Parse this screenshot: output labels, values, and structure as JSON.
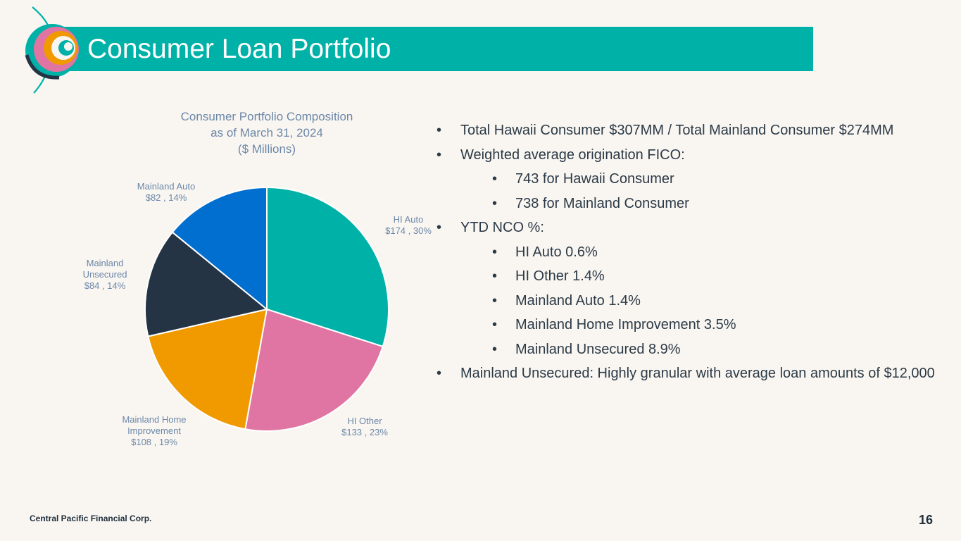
{
  "slide": {
    "title": "Consumer Loan Portfolio",
    "footer": "Central Pacific Financial Corp.",
    "page_number": "16"
  },
  "colors": {
    "title_bar": "#00b1a7",
    "background": "#f9f6f2",
    "label_text": "#6b87a6",
    "body_text": "#2c3a46"
  },
  "bullets": [
    {
      "level": 1,
      "text": "Total Hawaii Consumer $307MM / Total Mainland Consumer $274MM"
    },
    {
      "level": 1,
      "text": "Weighted average origination FICO:"
    },
    {
      "level": 2,
      "text": "743 for Hawaii Consumer"
    },
    {
      "level": 2,
      "text": "738 for Mainland Consumer"
    },
    {
      "level": 1,
      "text": "YTD NCO %:"
    },
    {
      "level": 2,
      "text": "HI Auto 0.6%"
    },
    {
      "level": 2,
      "text": "HI Other 1.4%"
    },
    {
      "level": 2,
      "text": "Mainland Auto 1.4%"
    },
    {
      "level": 2,
      "text": "Mainland Home Improvement 3.5%"
    },
    {
      "level": 2,
      "text": "Mainland Unsecured 8.9%"
    },
    {
      "level": 1,
      "text": "Mainland Unsecured: Highly granular with average loan amounts of $12,000"
    }
  ],
  "chart_data": {
    "type": "pie",
    "title": [
      "Consumer Portfolio Composition",
      "as of March 31, 2024",
      "($ Millions)"
    ],
    "slices": [
      {
        "label": "HI Auto",
        "value": 174,
        "percent": "30%",
        "color": "#00b1a7",
        "label_lines": [
          "HI Auto",
          "$174 , 30%"
        ]
      },
      {
        "label": "HI Other",
        "value": 133,
        "percent": "23%",
        "color": "#e075a3",
        "label_lines": [
          "HI Other",
          "$133 , 23%"
        ]
      },
      {
        "label": "Mainland Home Improvement",
        "value": 108,
        "percent": "19%",
        "color": "#f09a00",
        "label_lines": [
          "Mainland Home",
          "Improvement",
          "$108 , 19%"
        ]
      },
      {
        "label": "Mainland Unsecured",
        "value": 84,
        "percent": "14%",
        "color": "#243444",
        "label_lines": [
          "Mainland",
          "Unsecured",
          "$84 , 14%"
        ]
      },
      {
        "label": "Mainland Auto",
        "value": 82,
        "percent": "14%",
        "color": "#006fd0",
        "label_lines": [
          "Mainland Auto",
          "$82 , 14%"
        ]
      }
    ]
  }
}
